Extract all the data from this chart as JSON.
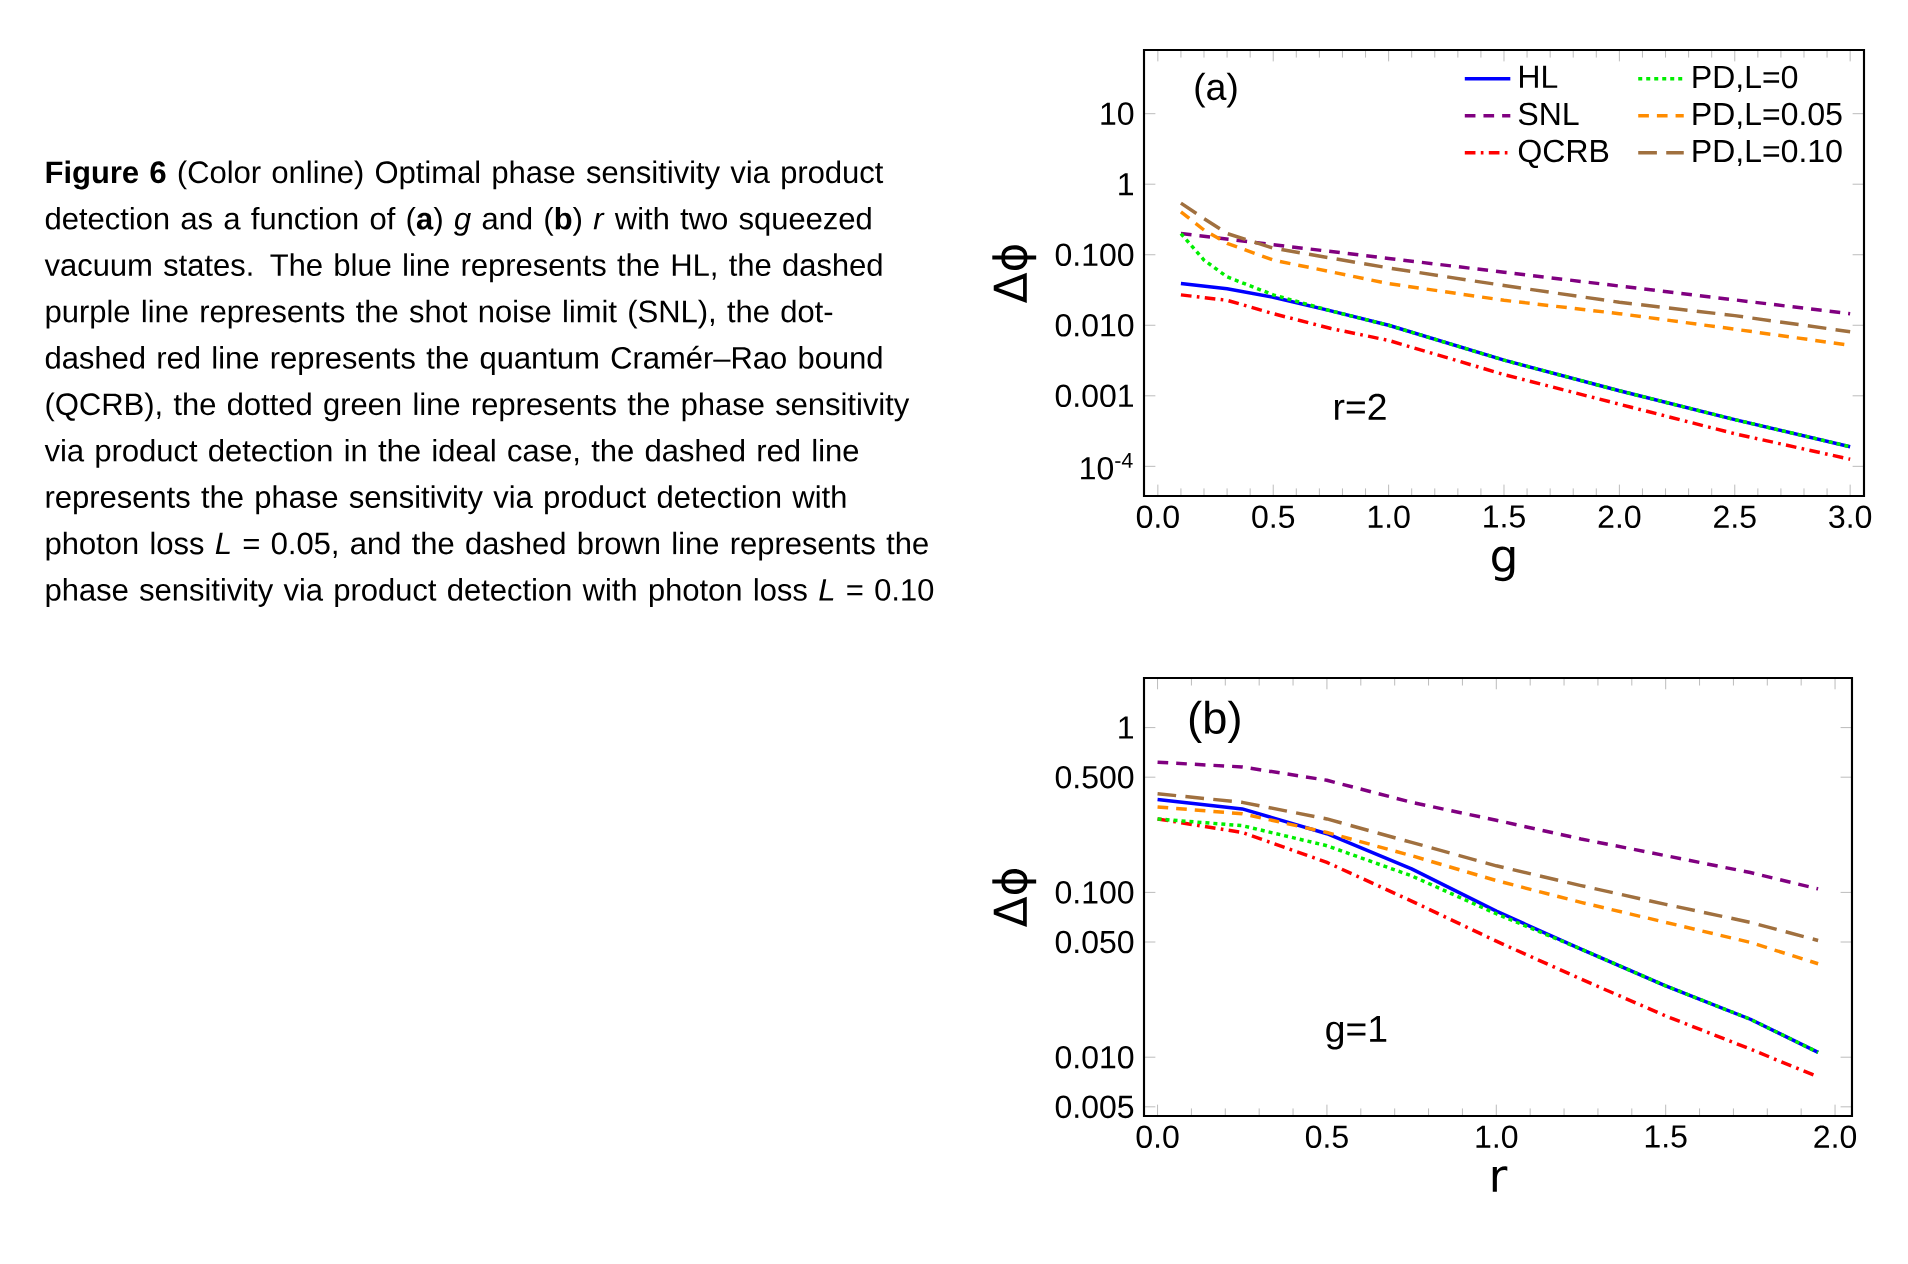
{
  "chart_data": [
    {
      "type": "line",
      "xlabel": "g",
      "ylabel": "Δϕ",
      "log": "y",
      "legend": "top right",
      "xlim": [
        -0.06,
        3.06
      ],
      "xticks": [
        {
          "value": 0,
          "label": "0.0"
        },
        0.5,
        {
          "value": 1,
          "label": "1.0"
        },
        1.5,
        {
          "value": 2,
          "label": "2.0"
        },
        2.5,
        {
          "value": 3,
          "label": "3.0"
        }
      ],
      "ylim": [
        3.8e-05,
        80
      ],
      "yticks": [
        {
          "value": 0.0001,
          "label": "10$^{-4}$"
        },
        0.001,
        {
          "value": 0.01,
          "label": "0.010"
        },
        {
          "value": 0.1,
          "label": "0.100"
        },
        1,
        10
      ],
      "annotations": [
        "**Figure 6**  (Color online) Optimal phase sensitivity via product detection as a function of (**a**) *g* and (**b**) *r* with two squeezed vacuum states. The blue line represents the HL, the dashed purple line represents the shot noise limit (SNL), the dot-dashed red line represents the quantum Cramér–Rao bound (QCRB), the dotted green line represents the phase sensitivity via product detection in the ideal case, the dashed red line represents the phase sensitivity via product detection with photon loss *L* = 0.05, and the dashed brown line represents the phase sensitivity via product detection with photon loss *L* = 0.10",
        "(a)",
        "r=2"
      ],
      "series": [
        {
          "name": "HL",
          "color": "#0000ff",
          "line_style": "solid",
          "x": [
            0.1,
            0.3,
            0.5,
            0.75,
            1.0,
            1.5,
            2.0,
            2.5,
            3.0
          ],
          "values": [
            0.039,
            0.033,
            0.025,
            0.016,
            0.01,
            0.0032,
            0.00118,
            0.00046,
            0.00019
          ]
        },
        {
          "name": "SNL",
          "color": "#800080",
          "line_style": "dashed",
          "x": [
            0.1,
            0.5,
            1.0,
            1.5,
            2.0,
            2.5,
            3.0
          ],
          "values": [
            0.2,
            0.139,
            0.0887,
            0.0565,
            0.036,
            0.0229,
            0.0146
          ]
        },
        {
          "name": "QCRB",
          "color": "#ff0000",
          "line_style": "dashdot",
          "x": [
            0.1,
            0.3,
            0.5,
            0.75,
            1.0,
            1.5,
            2.0,
            2.5,
            3.0
          ],
          "values": [
            0.027,
            0.0226,
            0.0146,
            0.009,
            0.0061,
            0.002,
            0.00076,
            0.00029,
            0.000126
          ]
        },
        {
          "name": "PD,L=0",
          "color": "#00ee00",
          "line_style": "dotted",
          "x": [
            0.1,
            0.2,
            0.3,
            0.5,
            0.75,
            1.0,
            1.5,
            2.0,
            2.5,
            3.0
          ],
          "values": [
            0.2,
            0.084,
            0.0486,
            0.027,
            0.016,
            0.01,
            0.0032,
            0.00118,
            0.00046,
            0.00019
          ]
        },
        {
          "name": "PD,L=0.05",
          "color": "#ff8c00",
          "line_style": "dashed",
          "x": [
            0.1,
            0.2,
            0.3,
            0.5,
            1.0,
            1.5,
            2.0,
            2.5,
            3.0
          ],
          "values": [
            0.406,
            0.224,
            0.145,
            0.084,
            0.039,
            0.0226,
            0.0146,
            0.0088,
            0.0052
          ]
        },
        {
          "name": "PD,L=0.10",
          "color": "#a0703f",
          "line_style": "longdashed",
          "x": [
            0.1,
            0.2,
            0.3,
            0.5,
            1.0,
            1.5,
            2.0,
            2.5,
            3.0
          ],
          "values": [
            0.54,
            0.326,
            0.2,
            0.124,
            0.065,
            0.0366,
            0.0212,
            0.0137,
            0.0081
          ]
        }
      ]
    },
    {
      "type": "line",
      "xlabel": "r",
      "ylabel": "Δϕ",
      "log": "y",
      "xlim": [
        -0.04,
        2.05
      ],
      "xticks": [
        {
          "value": 0,
          "label": "0.0"
        },
        0.5,
        {
          "value": 1,
          "label": "1.0"
        },
        1.5,
        {
          "value": 2,
          "label": "2.0"
        }
      ],
      "ylim": [
        0.0044,
        2.0
      ],
      "yticks": [
        0.005,
        {
          "value": 0.01,
          "label": "0.010"
        },
        {
          "value": 0.05,
          "label": "0.050"
        },
        {
          "value": 0.1,
          "label": "0.100"
        },
        {
          "value": 0.5,
          "label": "0.500"
        },
        1
      ],
      "annotations": [
        "(b)",
        "g=1"
      ],
      "series": [
        {
          "color": "#0000ff",
          "line_style": "solid",
          "x": [
            0,
            0.25,
            0.5,
            0.75,
            1.0,
            1.25,
            1.5,
            1.75,
            1.95
          ],
          "values": [
            0.366,
            0.321,
            0.227,
            0.139,
            0.077,
            0.0453,
            0.0271,
            0.017,
            0.0107
          ]
        },
        {
          "color": "#800080",
          "line_style": "dashed",
          "x": [
            0,
            0.25,
            0.5,
            0.75,
            1.0,
            1.25,
            1.5,
            1.75,
            1.95
          ],
          "values": [
            0.616,
            0.577,
            0.479,
            0.352,
            0.274,
            0.211,
            0.167,
            0.132,
            0.105
          ]
        },
        {
          "color": "#ff0000",
          "line_style": "dashdot",
          "x": [
            0,
            0.25,
            0.5,
            0.75,
            1.0,
            1.25,
            1.5,
            1.75,
            1.95
          ],
          "values": [
            0.279,
            0.231,
            0.152,
            0.0886,
            0.0506,
            0.0298,
            0.0178,
            0.0112,
            0.0076
          ]
        },
        {
          "color": "#00ee00",
          "line_style": "dotted",
          "x": [
            0,
            0.25,
            0.5,
            0.75,
            1.0,
            1.25,
            1.5,
            1.75,
            1.95
          ],
          "values": [
            0.279,
            0.254,
            0.192,
            0.126,
            0.0742,
            0.0453,
            0.0271,
            0.017,
            0.0107
          ]
        },
        {
          "color": "#ff8c00",
          "line_style": "dashed",
          "x": [
            0,
            0.25,
            0.5,
            0.75,
            1.0,
            1.25,
            1.5,
            1.75,
            1.95
          ],
          "values": [
            0.33,
            0.3,
            0.231,
            0.167,
            0.118,
            0.087,
            0.0658,
            0.0497,
            0.0369
          ]
        },
        {
          "color": "#a0703f",
          "line_style": "longdashed",
          "x": [
            0,
            0.25,
            0.5,
            0.75,
            1.0,
            1.25,
            1.5,
            1.75,
            1.95
          ],
          "values": [
            0.397,
            0.352,
            0.279,
            0.201,
            0.145,
            0.11,
            0.0846,
            0.0658,
            0.0511
          ]
        }
      ]
    }
  ]
}
